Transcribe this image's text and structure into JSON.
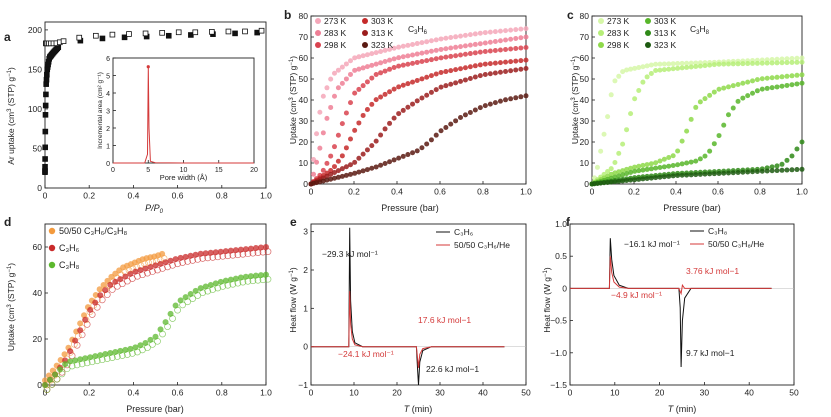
{
  "colors": {
    "axis": "#222222",
    "red_shades": [
      "#f4a7b9",
      "#ee7f95",
      "#d9434f",
      "#c52a2a",
      "#9b1d1d",
      "#5a1a12"
    ],
    "green_shades": [
      "#d6f7a8",
      "#b6ee78",
      "#8ed94a",
      "#58b62a",
      "#2f8a18",
      "#1d5a10"
    ],
    "orange": "#f39a3d",
    "red": "#c92a2a",
    "green": "#5cb82e",
    "heat_red": "#d43a3a",
    "heat_black": "#111111"
  },
  "chart_data": [
    {
      "panel": "a",
      "type": "scatter",
      "xlabel": "P/P0",
      "ylabel": "Ar uptake (cm3 (STP) g-1)",
      "xlim": [
        0,
        1
      ],
      "ylim": [
        0,
        210
      ],
      "xticks": [
        "0",
        "0.2",
        "0.4",
        "0.6",
        "0.8",
        "1.0"
      ],
      "yticks": [
        "0",
        "50",
        "100",
        "150",
        "200"
      ],
      "series": [
        {
          "name": "adsorption",
          "marker": "filled-square",
          "x": [
            0.0,
            0.002,
            0.005,
            0.01,
            0.02,
            0.04,
            0.06,
            0.1,
            0.15,
            0.2,
            0.3,
            0.4,
            0.5,
            0.6,
            0.7,
            0.8,
            0.9,
            1.0
          ],
          "y": [
            20,
            90,
            130,
            150,
            165,
            172,
            178,
            183,
            186,
            188,
            190,
            191,
            192,
            193,
            194,
            195,
            196,
            197
          ]
        },
        {
          "name": "desorption",
          "marker": "open-square",
          "x": [
            0.05,
            0.1,
            0.15,
            0.2,
            0.3,
            0.4,
            0.5,
            0.6,
            0.7,
            0.8,
            0.9,
            0.97
          ],
          "y": [
            183,
            187,
            190,
            192,
            194,
            195,
            196,
            197,
            197,
            198,
            198,
            199
          ]
        }
      ],
      "inset": {
        "type": "line",
        "xlabel": "Pore width (Å)",
        "ylabel": "Incremental area (cm2 g-1)",
        "xlim": [
          0,
          20
        ],
        "ylim": [
          0,
          6
        ],
        "xticks": [
          "0",
          "5",
          "10",
          "15",
          "20"
        ],
        "yticks": [
          "0",
          "1",
          "2",
          "3",
          "4",
          "5",
          "6"
        ],
        "x": [
          0,
          4.5,
          4.9,
          5.0,
          5.1,
          5.3,
          6,
          10,
          15,
          20
        ],
        "y": [
          0,
          0,
          0.5,
          5.5,
          2.0,
          0.1,
          0.02,
          0,
          0,
          0
        ]
      }
    },
    {
      "panel": "b",
      "type": "scatter",
      "gas": "C3H6",
      "xlabel": "Pressure (bar)",
      "ylabel": "Uptake (cm3 (STP) g-1)",
      "xlim": [
        0,
        1
      ],
      "ylim": [
        0,
        80
      ],
      "xticks": [
        "0",
        "0.2",
        "0.4",
        "0.6",
        "0.8",
        "1.0"
      ],
      "yticks": [
        "0",
        "10",
        "20",
        "30",
        "40",
        "50",
        "60",
        "70",
        "80"
      ],
      "series": [
        {
          "name": "273 K",
          "x": [
            0.0,
            0.02,
            0.05,
            0.1,
            0.2,
            0.4,
            0.6,
            0.8,
            1.0
          ],
          "y": [
            0,
            20,
            40,
            52,
            60,
            65,
            69,
            72,
            74
          ]
        },
        {
          "name": "283 K",
          "x": [
            0.0,
            0.03,
            0.07,
            0.12,
            0.2,
            0.4,
            0.6,
            0.8,
            1.0
          ],
          "y": [
            0,
            12,
            30,
            45,
            54,
            60,
            64,
            67,
            70
          ]
        },
        {
          "name": "298 K",
          "x": [
            0.0,
            0.05,
            0.1,
            0.15,
            0.2,
            0.3,
            0.4,
            0.6,
            0.8,
            1.0
          ],
          "y": [
            0,
            5,
            15,
            30,
            43,
            52,
            56,
            60,
            63,
            65
          ]
        },
        {
          "name": "303 K",
          "x": [
            0.0,
            0.1,
            0.15,
            0.2,
            0.25,
            0.3,
            0.4,
            0.6,
            0.8,
            1.0
          ],
          "y": [
            0,
            7,
            14,
            25,
            34,
            40,
            46,
            53,
            57,
            59
          ]
        },
        {
          "name": "313 K",
          "x": [
            0.0,
            0.1,
            0.2,
            0.3,
            0.35,
            0.4,
            0.5,
            0.6,
            0.8,
            1.0
          ],
          "y": [
            0,
            5,
            10,
            20,
            27,
            33,
            40,
            46,
            52,
            55
          ]
        },
        {
          "name": "323 K",
          "x": [
            0.0,
            0.2,
            0.3,
            0.4,
            0.5,
            0.55,
            0.6,
            0.7,
            0.8,
            0.9,
            1.0
          ],
          "y": [
            0,
            5,
            8,
            12,
            16,
            20,
            25,
            32,
            37,
            40,
            42
          ]
        }
      ]
    },
    {
      "panel": "c",
      "type": "scatter",
      "gas": "C3H8",
      "xlabel": "Pressure (bar)",
      "ylabel": "Uptake (cm3 (STP) g-1)",
      "xlim": [
        0,
        1
      ],
      "ylim": [
        0,
        80
      ],
      "xticks": [
        "0",
        "0.2",
        "0.4",
        "0.6",
        "0.8",
        "1.0"
      ],
      "yticks": [
        "0",
        "10",
        "20",
        "30",
        "40",
        "50",
        "60",
        "70",
        "80"
      ],
      "series": [
        {
          "name": "273 K",
          "x": [
            0.0,
            0.02,
            0.05,
            0.08,
            0.1,
            0.15,
            0.3,
            0.6,
            1.0
          ],
          "y": [
            0,
            5,
            20,
            35,
            48,
            54,
            57,
            58,
            60
          ]
        },
        {
          "name": "283 K",
          "x": [
            0.0,
            0.05,
            0.1,
            0.15,
            0.2,
            0.25,
            0.3,
            0.6,
            1.0
          ],
          "y": [
            0,
            4,
            8,
            20,
            40,
            50,
            54,
            57,
            58
          ]
        },
        {
          "name": "298 K",
          "x": [
            0.0,
            0.1,
            0.2,
            0.3,
            0.4,
            0.45,
            0.5,
            0.6,
            0.8,
            1.0
          ],
          "y": [
            0,
            5,
            8,
            10,
            14,
            25,
            38,
            45,
            50,
            52
          ]
        },
        {
          "name": "303 K",
          "x": [
            0.0,
            0.2,
            0.4,
            0.5,
            0.55,
            0.6,
            0.65,
            0.7,
            0.8,
            1.0
          ],
          "y": [
            0,
            6,
            9,
            11,
            14,
            22,
            33,
            40,
            45,
            48
          ]
        },
        {
          "name": "313 K",
          "x": [
            0.0,
            0.2,
            0.4,
            0.6,
            0.8,
            0.9,
            0.95,
            1.0
          ],
          "y": [
            0,
            3,
            5,
            6,
            7,
            9,
            13,
            20
          ]
        },
        {
          "name": "323 K",
          "x": [
            0.0,
            0.2,
            0.4,
            0.6,
            0.8,
            1.0
          ],
          "y": [
            0,
            2,
            4,
            5,
            6,
            7
          ]
        }
      ]
    },
    {
      "panel": "d",
      "type": "scatter",
      "xlabel": "Pressure (bar)",
      "ylabel": "Uptake (cm3 (STP) g-1)",
      "xlim": [
        0,
        1
      ],
      "ylim": [
        0,
        70
      ],
      "xticks": [
        "0",
        "0.2",
        "0.4",
        "0.6",
        "0.8",
        "1.0"
      ],
      "yticks": [
        "0",
        "20",
        "40",
        "60"
      ],
      "series": [
        {
          "name": "50/50 C3H6/C3H8",
          "x": [
            0.0,
            0.05,
            0.1,
            0.15,
            0.2,
            0.25,
            0.3,
            0.35,
            0.4,
            0.45,
            0.5,
            0.53
          ],
          "y": [
            2,
            8,
            15,
            25,
            35,
            42,
            47,
            51,
            53,
            55,
            56,
            57
          ]
        },
        {
          "name": "C3H6",
          "x": [
            0.0,
            0.05,
            0.1,
            0.15,
            0.2,
            0.25,
            0.3,
            0.4,
            0.5,
            0.6,
            0.7,
            0.8,
            0.9,
            1.0
          ],
          "y": [
            0,
            5,
            12,
            22,
            32,
            39,
            44,
            49,
            52,
            55,
            57,
            58,
            59,
            60
          ]
        },
        {
          "name": "C3H8",
          "x": [
            0.0,
            0.1,
            0.2,
            0.3,
            0.4,
            0.45,
            0.5,
            0.55,
            0.6,
            0.7,
            0.8,
            0.9,
            1.0
          ],
          "y": [
            0,
            10,
            12,
            14,
            16,
            18,
            21,
            28,
            36,
            42,
            45,
            47,
            48
          ]
        }
      ]
    },
    {
      "panel": "e",
      "type": "line",
      "xlabel": "T (min)",
      "ylabel": "Heat flow (W g-1)",
      "xlim": [
        0,
        50
      ],
      "ylim": [
        -1,
        3.2
      ],
      "xticks": [
        "0",
        "10",
        "20",
        "30",
        "40",
        "50"
      ],
      "yticks": [
        "-1",
        "0",
        "1",
        "2",
        "3"
      ],
      "series": [
        {
          "name": "C3H6",
          "color": "black",
          "x": [
            0,
            8.8,
            9.0,
            9.2,
            9.6,
            10.2,
            12,
            14,
            24.5,
            24.8,
            25.0,
            25.3,
            26,
            28,
            45
          ],
          "y": [
            0,
            0,
            3.1,
            1.2,
            0.4,
            0.1,
            0,
            0,
            0,
            -0.6,
            -1.0,
            -0.4,
            -0.1,
            0,
            0
          ]
        },
        {
          "name": "50/50 C3H6/He",
          "color": "red",
          "x": [
            0,
            8.8,
            9.0,
            9.2,
            9.6,
            10.2,
            12,
            14,
            24.5,
            24.8,
            25.0,
            25.3,
            26,
            28,
            45
          ],
          "y": [
            0,
            0,
            1.45,
            0.6,
            0.2,
            0.05,
            0,
            0,
            0,
            -0.3,
            -0.55,
            -0.2,
            -0.05,
            0,
            0
          ]
        }
      ],
      "annotations": [
        "-29.3 kJ mol-1",
        "-24.1 kJ mol-1",
        "17.6 kJ mol-1",
        "22.6 kJ mol-1"
      ]
    },
    {
      "panel": "f",
      "type": "line",
      "xlabel": "T (min)",
      "ylabel": "Heat flow (W g-1)",
      "xlim": [
        0,
        50
      ],
      "ylim": [
        -1.5,
        1.0
      ],
      "xticks": [
        "0",
        "10",
        "20",
        "30",
        "40",
        "50"
      ],
      "yticks": [
        "-1.5",
        "-1.0",
        "-0.5",
        "0",
        "0.5",
        "1.0"
      ],
      "series": [
        {
          "name": "C3H8",
          "color": "black",
          "x": [
            0,
            8.8,
            9.0,
            9.3,
            9.8,
            11,
            13,
            24.3,
            24.6,
            24.8,
            25.1,
            25.6,
            27,
            45
          ],
          "y": [
            0,
            0,
            0.78,
            0.45,
            0.2,
            0.05,
            0,
            0,
            -0.3,
            -1.22,
            -0.5,
            -0.15,
            0,
            0
          ]
        },
        {
          "name": "50/50 C3H8/He",
          "color": "red",
          "x": [
            0,
            8.8,
            9.0,
            9.3,
            9.8,
            11,
            13,
            24.3,
            24.6,
            24.8,
            25.1,
            25.6,
            27,
            45
          ],
          "y": [
            0,
            0,
            0.5,
            0.25,
            0.1,
            0.02,
            0,
            0,
            -0.05,
            -0.08,
            0.05,
            0.0,
            0,
            0
          ]
        }
      ],
      "annotations": [
        "-16.1 kJ mol-1",
        "-4.9 kJ mol-1",
        "3.76 kJ mol-1",
        "9.7 kJ mol-1"
      ]
    }
  ]
}
